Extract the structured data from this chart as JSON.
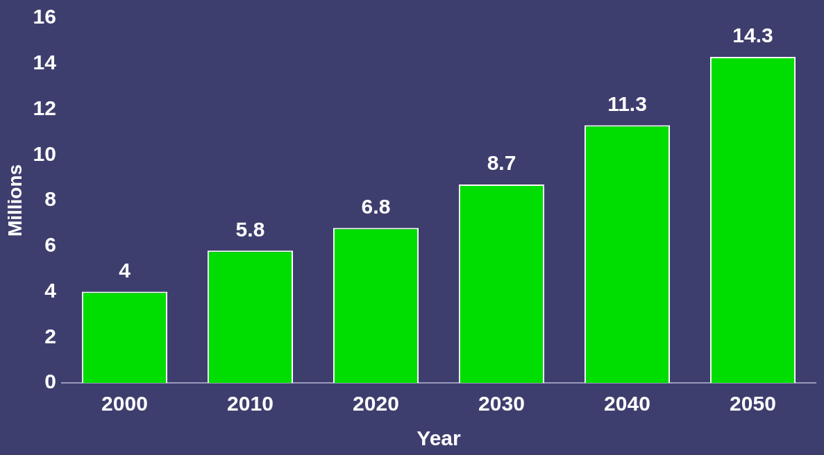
{
  "chart_data": {
    "type": "bar",
    "xlabel": "Year",
    "ylabel": "Millions",
    "categories": [
      "2000",
      "2010",
      "2020",
      "2030",
      "2040",
      "2050"
    ],
    "values": [
      4,
      5.8,
      6.8,
      8.7,
      11.3,
      14.3
    ],
    "color": "#00dd00",
    "ylim": [
      0,
      16
    ],
    "yticks": [
      0,
      2,
      4,
      6,
      8,
      10,
      12,
      14,
      16
    ],
    "grid": false,
    "legend": false,
    "data_labels": true
  }
}
